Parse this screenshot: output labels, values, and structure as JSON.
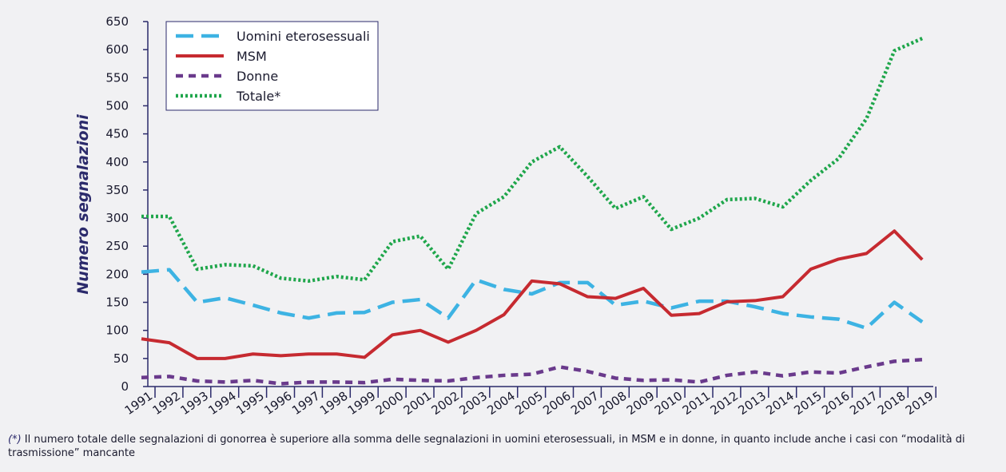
{
  "chart_data": {
    "type": "line",
    "ylabel": "Numero segnalazioni",
    "categories": [
      "1991",
      "1992",
      "1993",
      "1994",
      "1995",
      "1996",
      "1997",
      "1998",
      "1999",
      "2000",
      "2001",
      "2002",
      "2003",
      "2004",
      "2005",
      "2006",
      "2007",
      "2008",
      "2009",
      "2010",
      "2011",
      "2012",
      "2013",
      "2014",
      "2015",
      "2016",
      "2017",
      "2018",
      "2019"
    ],
    "series": [
      {
        "name": "Uomini eterosessuali",
        "color": "#3db3e3",
        "style": "dashed",
        "values": [
          204,
          208,
          150,
          158,
          145,
          131,
          122,
          131,
          132,
          150,
          155,
          122,
          190,
          173,
          165,
          185,
          185,
          145,
          152,
          140,
          152,
          152,
          142,
          130,
          124,
          120,
          104,
          150,
          115
        ]
      },
      {
        "name": "MSM",
        "color": "#c62a30",
        "style": "solid",
        "values": [
          85,
          78,
          50,
          50,
          58,
          55,
          58,
          58,
          52,
          92,
          100,
          79,
          100,
          128,
          188,
          183,
          160,
          157,
          175,
          127,
          130,
          151,
          153,
          160,
          209,
          227,
          237,
          277,
          226
        ]
      },
      {
        "name": "Donne",
        "color": "#6a3a8c",
        "style": "short-dashed",
        "values": [
          16,
          18,
          10,
          8,
          11,
          5,
          8,
          8,
          7,
          13,
          11,
          10,
          16,
          20,
          22,
          35,
          27,
          15,
          11,
          12,
          8,
          20,
          26,
          19,
          26,
          24,
          35,
          45,
          48
        ]
      },
      {
        "name": "Totale*",
        "color": "#1fa64b",
        "style": "dotted",
        "values": [
          303,
          303,
          209,
          217,
          215,
          193,
          188,
          196,
          190,
          258,
          268,
          209,
          308,
          338,
          400,
          427,
          374,
          317,
          338,
          280,
          300,
          333,
          335,
          320,
          367,
          406,
          477,
          598,
          620
        ]
      }
    ],
    "ylim": [
      0,
      650
    ],
    "yticks": [
      0,
      50,
      100,
      150,
      200,
      250,
      300,
      350,
      400,
      450,
      500,
      550,
      600,
      650
    ],
    "note_marker": "(*)",
    "note": "Il numero totale delle segnalazioni di gonorrea è superiore alla somma delle segnalazioni in uomini eterosessuali, in MSM e in donne, in quanto include anche i casi con “modalità di trasmissione” mancante"
  }
}
